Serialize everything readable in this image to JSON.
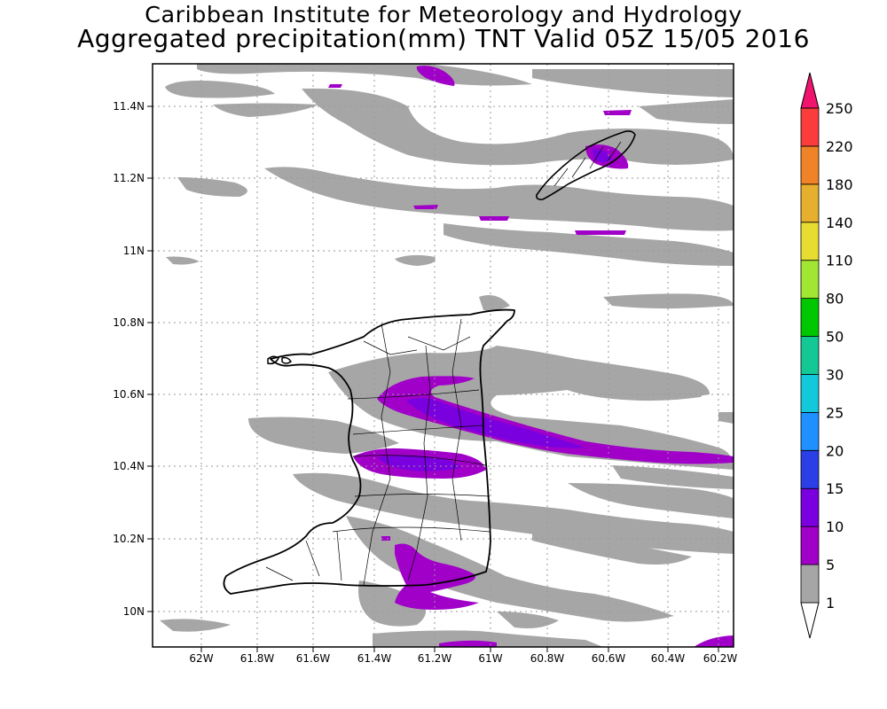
{
  "title_line1": "Caribbean Institute for Meteorology and Hydrology",
  "title_line2": "Aggregated precipitation(mm) TNT Valid 05Z 15/05 2016",
  "map": {
    "lon_range": [
      -62.25,
      -60.17
    ],
    "lat_range": [
      9.9,
      11.5
    ],
    "x_ticks": [
      "62W",
      "61.8W",
      "61.6W",
      "61.4W",
      "61.2W",
      "61W",
      "60.8W",
      "60.6W",
      "60.4W",
      "60.2W"
    ],
    "y_ticks": [
      "10N",
      "10.2N",
      "10.4N",
      "10.6N",
      "10.8N",
      "11N",
      "11.2N",
      "11.4N"
    ],
    "grid": "dotted"
  },
  "colorbar": {
    "labels": [
      "1",
      "5",
      "10",
      "15",
      "20",
      "25",
      "30",
      "50",
      "80",
      "110",
      "140",
      "180",
      "220",
      "250"
    ],
    "colors": [
      "#ffffff",
      "#a6a6a6",
      "#a000c8",
      "#7a00e0",
      "#2a3fe6",
      "#1e90ff",
      "#14c8dc",
      "#14c896",
      "#00c800",
      "#a0e632",
      "#e6dc32",
      "#e6af2d",
      "#f08228",
      "#fa3c3c",
      "#f0146e"
    ]
  }
}
